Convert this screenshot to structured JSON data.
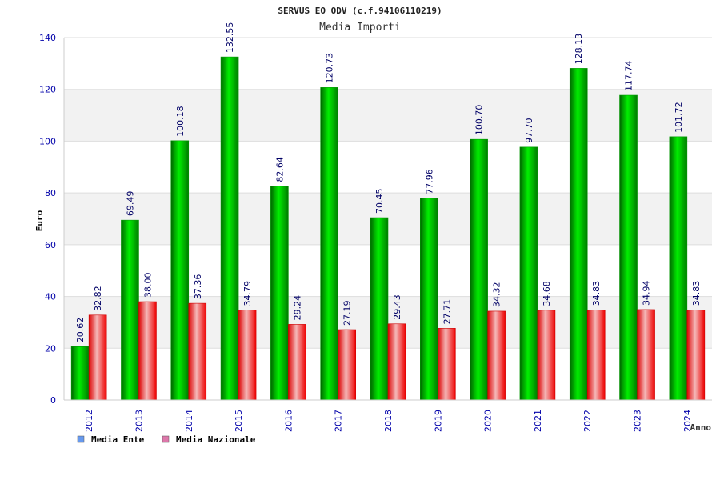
{
  "chart_data": {
    "type": "bar",
    "title": "SERVUS EO ODV (c.f.94106110219)",
    "subtitle": "Media Importi",
    "xlabel": "Anno",
    "ylabel": "Euro",
    "ylim": [
      0,
      140
    ],
    "yticks": [
      "0",
      "20",
      "40",
      "60",
      "80",
      "100",
      "120",
      "140"
    ],
    "categories": [
      "2012",
      "2013",
      "2014",
      "2015",
      "2016",
      "2017",
      "2018",
      "2019",
      "2020",
      "2021",
      "2022",
      "2023",
      "2024"
    ],
    "series": [
      {
        "name": "Media Ente",
        "color": "#00cc00",
        "legend_color": "#6699ee",
        "values": [
          20.62,
          69.49,
          100.18,
          132.55,
          82.64,
          120.73,
          70.45,
          77.96,
          100.7,
          97.7,
          128.13,
          117.74,
          101.72
        ],
        "labels": [
          "20.62",
          "69.49",
          "100.18",
          "132.55",
          "82.64",
          "120.73",
          "70.45",
          "77.96",
          "100.70",
          "97.70",
          "128.13",
          "117.74",
          "101.72"
        ]
      },
      {
        "name": "Media Nazionale",
        "color": "#ee0000",
        "legend_color": "#dd77aa",
        "values": [
          32.82,
          38.0,
          37.36,
          34.79,
          29.24,
          27.19,
          29.43,
          27.71,
          34.32,
          34.68,
          34.83,
          34.94,
          34.83
        ],
        "labels": [
          "32.82",
          "38.00",
          "37.36",
          "34.79",
          "29.24",
          "27.19",
          "29.43",
          "27.71",
          "34.32",
          "34.68",
          "34.83",
          "34.94",
          "34.83"
        ]
      }
    ],
    "grid": true,
    "legend_position": "bottom-left"
  }
}
